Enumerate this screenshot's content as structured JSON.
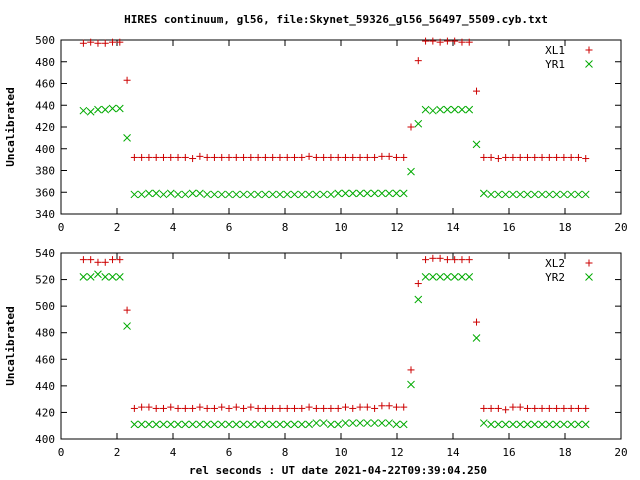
{
  "figure_title": "HIRES continuum, gl56, file:Skynet_59326_gl56_56497_5509.cyb.txt",
  "xlabel": "rel seconds : UT date 2021-04-22T09:39:04.250",
  "chart_data": [
    {
      "type": "scatter",
      "title": "HIRES continuum, gl56, file:Skynet_59326_gl56_56497_5509.cyb.txt",
      "xlabel": "",
      "ylabel": "Uncalibrated",
      "xlim": [
        0,
        20
      ],
      "ylim": [
        340,
        500
      ],
      "xticks": [
        0,
        2,
        4,
        6,
        8,
        10,
        12,
        14,
        16,
        18,
        20
      ],
      "yticks": [
        340,
        360,
        380,
        400,
        420,
        440,
        460,
        480,
        500
      ],
      "grid": false,
      "legend": "top-right",
      "series": [
        {
          "name": "XL1",
          "marker": "plus",
          "color": "#cc0000",
          "x": [
            0.8,
            1.06,
            1.32,
            1.58,
            1.84,
            2.1,
            2.36,
            2.62,
            2.88,
            3.14,
            3.4,
            3.66,
            3.92,
            4.18,
            4.44,
            4.7,
            4.96,
            5.22,
            5.48,
            5.74,
            6.0,
            6.26,
            6.52,
            6.78,
            7.04,
            7.3,
            7.56,
            7.82,
            8.08,
            8.34,
            8.6,
            8.86,
            9.12,
            9.38,
            9.64,
            9.9,
            10.16,
            10.42,
            10.68,
            10.94,
            11.2,
            11.46,
            11.72,
            11.98,
            12.24,
            12.5,
            12.76,
            13.02,
            13.28,
            13.54,
            13.8,
            14.06,
            14.32,
            14.58,
            14.84,
            15.1,
            15.36,
            15.62,
            15.88,
            16.14,
            16.4,
            16.66,
            16.92,
            17.18,
            17.44,
            17.7,
            17.96,
            18.22,
            18.48,
            18.74
          ],
          "y": [
            497,
            498,
            497,
            497,
            498,
            498,
            463,
            392,
            392,
            392,
            392,
            392,
            392,
            392,
            392,
            391,
            393,
            392,
            392,
            392,
            392,
            392,
            392,
            392,
            392,
            392,
            392,
            392,
            392,
            392,
            392,
            393,
            392,
            392,
            392,
            392,
            392,
            392,
            392,
            392,
            392,
            393,
            393,
            392,
            392,
            420,
            481,
            499,
            499,
            498,
            499,
            499,
            498,
            498,
            453,
            392,
            392,
            391,
            392,
            392,
            392,
            392,
            392,
            392,
            392,
            392,
            392,
            392,
            392,
            391
          ]
        },
        {
          "name": "YR1",
          "marker": "cross",
          "color": "#00aa00",
          "x": [
            0.8,
            1.06,
            1.32,
            1.58,
            1.84,
            2.1,
            2.36,
            2.62,
            2.88,
            3.14,
            3.4,
            3.66,
            3.92,
            4.18,
            4.44,
            4.7,
            4.96,
            5.22,
            5.48,
            5.74,
            6.0,
            6.26,
            6.52,
            6.78,
            7.04,
            7.3,
            7.56,
            7.82,
            8.08,
            8.34,
            8.6,
            8.86,
            9.12,
            9.38,
            9.64,
            9.9,
            10.16,
            10.42,
            10.68,
            10.94,
            11.2,
            11.46,
            11.72,
            11.98,
            12.24,
            12.5,
            12.76,
            13.02,
            13.28,
            13.54,
            13.8,
            14.06,
            14.32,
            14.58,
            14.84,
            15.1,
            15.36,
            15.62,
            15.88,
            16.14,
            16.4,
            16.66,
            16.92,
            17.18,
            17.44,
            17.7,
            17.96,
            18.22,
            18.48,
            18.74
          ],
          "y": [
            435,
            434,
            436,
            436,
            437,
            437,
            410,
            358,
            358,
            359,
            359,
            358,
            359,
            358,
            358,
            359,
            359,
            358,
            358,
            358,
            358,
            358,
            358,
            358,
            358,
            358,
            358,
            358,
            358,
            358,
            358,
            358,
            358,
            358,
            358,
            359,
            359,
            359,
            359,
            359,
            359,
            359,
            359,
            359,
            359,
            379,
            423,
            436,
            435,
            436,
            436,
            436,
            436,
            436,
            404,
            359,
            358,
            358,
            358,
            358,
            358,
            358,
            358,
            358,
            358,
            358,
            358,
            358,
            358,
            358
          ]
        }
      ]
    },
    {
      "type": "scatter",
      "title": "",
      "xlabel": "rel seconds : UT date 2021-04-22T09:39:04.250",
      "ylabel": "Uncalibrated",
      "xlim": [
        0,
        20
      ],
      "ylim": [
        400,
        540
      ],
      "xticks": [
        0,
        2,
        4,
        6,
        8,
        10,
        12,
        14,
        16,
        18,
        20
      ],
      "yticks": [
        400,
        420,
        440,
        460,
        480,
        500,
        520,
        540
      ],
      "grid": false,
      "legend": "top-right",
      "series": [
        {
          "name": "XL2",
          "marker": "plus",
          "color": "#cc0000",
          "x": [
            0.8,
            1.06,
            1.32,
            1.58,
            1.84,
            2.1,
            2.36,
            2.62,
            2.88,
            3.14,
            3.4,
            3.66,
            3.92,
            4.18,
            4.44,
            4.7,
            4.96,
            5.22,
            5.48,
            5.74,
            6.0,
            6.26,
            6.52,
            6.78,
            7.04,
            7.3,
            7.56,
            7.82,
            8.08,
            8.34,
            8.6,
            8.86,
            9.12,
            9.38,
            9.64,
            9.9,
            10.16,
            10.42,
            10.68,
            10.94,
            11.2,
            11.46,
            11.72,
            11.98,
            12.24,
            12.5,
            12.76,
            13.02,
            13.28,
            13.54,
            13.8,
            14.06,
            14.32,
            14.58,
            14.84,
            15.1,
            15.36,
            15.62,
            15.88,
            16.14,
            16.4,
            16.66,
            16.92,
            17.18,
            17.44,
            17.7,
            17.96,
            18.22,
            18.48,
            18.74
          ],
          "y": [
            535,
            535,
            533,
            533,
            535,
            535,
            497,
            423,
            424,
            424,
            423,
            423,
            424,
            423,
            423,
            423,
            424,
            423,
            423,
            424,
            423,
            424,
            423,
            424,
            423,
            423,
            423,
            423,
            423,
            423,
            423,
            424,
            423,
            423,
            423,
            423,
            424,
            423,
            424,
            424,
            423,
            425,
            425,
            424,
            424,
            452,
            517,
            535,
            536,
            536,
            535,
            535,
            535,
            535,
            488,
            423,
            423,
            423,
            422,
            424,
            424,
            423,
            423,
            423,
            423,
            423,
            423,
            423,
            423,
            423
          ]
        },
        {
          "name": "YR2",
          "marker": "cross",
          "color": "#00aa00",
          "x": [
            0.8,
            1.06,
            1.32,
            1.58,
            1.84,
            2.1,
            2.36,
            2.62,
            2.88,
            3.14,
            3.4,
            3.66,
            3.92,
            4.18,
            4.44,
            4.7,
            4.96,
            5.22,
            5.48,
            5.74,
            6.0,
            6.26,
            6.52,
            6.78,
            7.04,
            7.3,
            7.56,
            7.82,
            8.08,
            8.34,
            8.6,
            8.86,
            9.12,
            9.38,
            9.64,
            9.9,
            10.16,
            10.42,
            10.68,
            10.94,
            11.2,
            11.46,
            11.72,
            11.98,
            12.24,
            12.5,
            12.76,
            13.02,
            13.28,
            13.54,
            13.8,
            14.06,
            14.32,
            14.58,
            14.84,
            15.1,
            15.36,
            15.62,
            15.88,
            16.14,
            16.4,
            16.66,
            16.92,
            17.18,
            17.44,
            17.7,
            17.96,
            18.22,
            18.48,
            18.74
          ],
          "y": [
            522,
            522,
            524,
            522,
            522,
            522,
            485,
            411,
            411,
            411,
            411,
            411,
            411,
            411,
            411,
            411,
            411,
            411,
            411,
            411,
            411,
            411,
            411,
            411,
            411,
            411,
            411,
            411,
            411,
            411,
            411,
            411,
            412,
            412,
            411,
            411,
            412,
            412,
            412,
            412,
            412,
            412,
            412,
            411,
            411,
            441,
            505,
            522,
            522,
            522,
            522,
            522,
            522,
            522,
            476,
            412,
            411,
            411,
            411,
            411,
            411,
            411,
            411,
            411,
            411,
            411,
            411,
            411,
            411,
            411
          ]
        }
      ]
    }
  ]
}
